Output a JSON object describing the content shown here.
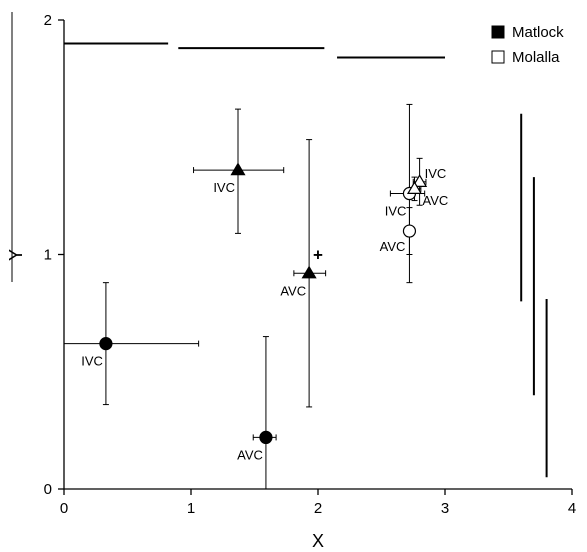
{
  "chart_data": {
    "type": "scatter",
    "title": "",
    "xlabel": "X",
    "ylabel": "Y",
    "xlim": [
      0,
      4
    ],
    "ylim": [
      0,
      2
    ],
    "x_ticks": [
      "0",
      "1",
      "2",
      "3",
      "4"
    ],
    "y_ticks": [
      "0",
      "1",
      "2"
    ],
    "grid": false,
    "legend_position": "top-right",
    "legend": [
      {
        "label": "Matlock",
        "fill": "#000000"
      },
      {
        "label": "Molalla",
        "fill": "#ffffff"
      }
    ],
    "series": [
      {
        "name": "Matlock",
        "points": [
          {
            "label": "IVC",
            "marker": "circle",
            "fill": "#000000",
            "x": 0.33,
            "y": 0.62,
            "xerr": [
              0.33,
              0.73
            ],
            "yerr": [
              0.26,
              0.26
            ],
            "label_pos": "bottom-left"
          },
          {
            "label": "AVC",
            "marker": "circle",
            "fill": "#000000",
            "x": 1.59,
            "y": 0.22,
            "xerr": [
              0.1,
              0.08
            ],
            "yerr": [
              0.22,
              0.43
            ],
            "label_pos": "bottom-left"
          },
          {
            "label": "IVC",
            "marker": "triangle",
            "fill": "#000000",
            "x": 1.37,
            "y": 1.36,
            "xerr": [
              0.35,
              0.36
            ],
            "yerr": [
              0.27,
              0.26
            ],
            "label_pos": "bottom-left"
          },
          {
            "label": "AVC",
            "marker": "triangle",
            "fill": "#000000",
            "x": 1.93,
            "y": 0.92,
            "xerr": [
              0.12,
              0.13
            ],
            "yerr": [
              0.57,
              0.57
            ],
            "label_pos": "bottom-left"
          }
        ]
      },
      {
        "name": "Molalla",
        "points": [
          {
            "label": "IVC",
            "marker": "circle",
            "fill": "#ffffff",
            "x": 2.72,
            "y": 1.26,
            "xerr": [
              0.15,
              0.12
            ],
            "yerr": [
              0.38,
              0.38
            ],
            "label_pos": "bottom-left"
          },
          {
            "label": "AVC",
            "marker": "circle",
            "fill": "#ffffff",
            "x": 2.72,
            "y": 1.1,
            "xerr": [
              0.03,
              0.03
            ],
            "yerr": [
              0.1,
              0.1
            ],
            "label_pos": "left"
          },
          {
            "label": "IVC",
            "marker": "triangle",
            "fill": "#ffffff",
            "x": 2.8,
            "y": 1.31,
            "xerr": [
              0.05,
              0.05
            ],
            "yerr": [
              0.1,
              0.1
            ],
            "label_pos": "top-right"
          },
          {
            "label": "AVC",
            "marker": "triangle",
            "fill": "#ffffff",
            "x": 2.76,
            "y": 1.28,
            "xerr": [
              0.04,
              0.05
            ],
            "yerr": [
              0.05,
              0.05
            ],
            "label_pos": "bottom-right"
          }
        ]
      }
    ],
    "centroid_marker": {
      "symbol": "+",
      "x": 2.0,
      "y": 1.0
    },
    "horizontal_bars": [
      {
        "x1": 0.0,
        "x2": 0.82,
        "y": 1.9
      },
      {
        "x1": 0.9,
        "x2": 2.05,
        "y": 1.88
      },
      {
        "x1": 2.15,
        "x2": 3.0,
        "y": 1.84
      }
    ],
    "vertical_bars": [
      {
        "x": 3.6,
        "y1": 0.8,
        "y2": 1.6
      },
      {
        "x": 3.7,
        "y1": 0.4,
        "y2": 1.33
      },
      {
        "x": 3.8,
        "y1": 0.05,
        "y2": 0.81
      }
    ]
  }
}
